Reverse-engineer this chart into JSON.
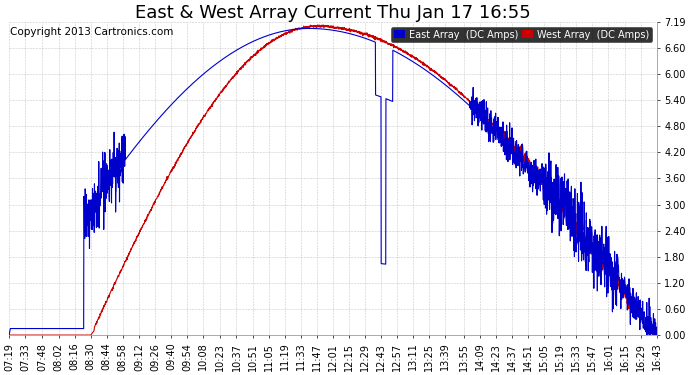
{
  "title": "East & West Array Current Thu Jan 17 16:55",
  "copyright": "Copyright 2013 Cartronics.com",
  "legend_east": "East Array  (DC Amps)",
  "legend_west": "West Array  (DC Amps)",
  "east_color": "#0000cc",
  "west_color": "#cc0000",
  "background_color": "#ffffff",
  "grid_color": "#bbbbbb",
  "yticks": [
    0.0,
    0.6,
    1.2,
    1.8,
    2.4,
    3.0,
    3.6,
    4.2,
    4.8,
    5.4,
    6.0,
    6.6,
    7.19
  ],
  "ylim": [
    0,
    7.19
  ],
  "xtick_labels": [
    "07:19",
    "07:33",
    "07:48",
    "08:02",
    "08:16",
    "08:30",
    "08:44",
    "08:58",
    "09:12",
    "09:26",
    "09:40",
    "09:54",
    "10:08",
    "10:23",
    "10:37",
    "10:51",
    "11:05",
    "11:19",
    "11:33",
    "11:47",
    "12:01",
    "12:15",
    "12:29",
    "12:43",
    "12:57",
    "13:11",
    "13:25",
    "13:39",
    "13:55",
    "14:09",
    "14:23",
    "14:37",
    "14:51",
    "15:05",
    "15:19",
    "15:33",
    "15:47",
    "16:01",
    "16:15",
    "16:29",
    "16:43"
  ],
  "title_fontsize": 13,
  "axis_fontsize": 7,
  "copyright_fontsize": 7.5,
  "line_width": 0.8
}
